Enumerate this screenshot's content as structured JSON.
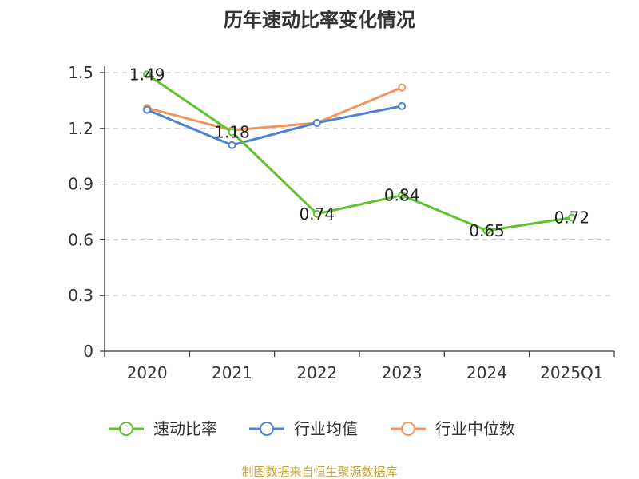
{
  "chart_data": {
    "type": "line",
    "title": "历年速动比率变化情况",
    "categories": [
      "2020",
      "2021",
      "2022",
      "2023",
      "2024",
      "2025Q1"
    ],
    "y_ticks": [
      "0",
      "0.3",
      "0.6",
      "0.9",
      "1.2",
      "1.5"
    ],
    "ylim": [
      0,
      1.5
    ],
    "series": [
      {
        "name": "速动比率",
        "color": "#5ec22c",
        "values": [
          1.49,
          1.18,
          0.74,
          0.84,
          0.65,
          0.72
        ],
        "labels": [
          "1.49",
          "1.18",
          "0.74",
          "0.84",
          "0.65",
          "0.72"
        ]
      },
      {
        "name": "行业均值",
        "color": "#4f81d9",
        "values": [
          1.3,
          1.11,
          1.23,
          1.32,
          null,
          null
        ]
      },
      {
        "name": "行业中位数",
        "color": "#f4935c",
        "values": [
          1.31,
          1.19,
          1.23,
          1.42,
          null,
          null
        ]
      }
    ],
    "legend_position": "bottom",
    "grid": true
  },
  "source": "制图数据来自恒生聚源数据库"
}
